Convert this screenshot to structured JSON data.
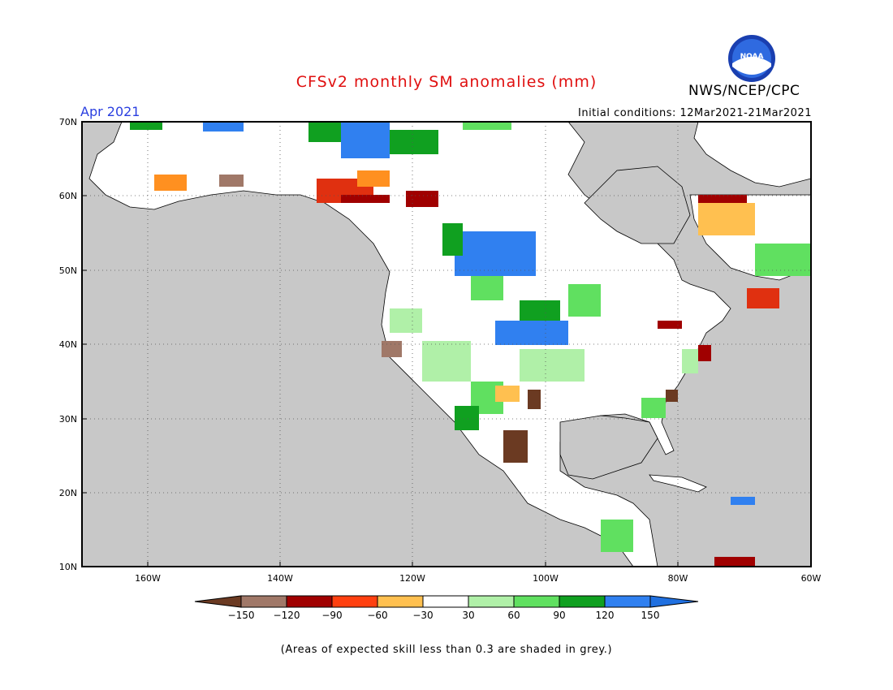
{
  "header": {
    "title": "CFSv2 monthly SM anomalies (mm)",
    "month": "Apr 2021",
    "initial_conditions": "Initial conditions: 12Mar2021-21Mar2021",
    "organization": "NWS/NCEP/CPC",
    "logo_text": "NOAA"
  },
  "map": {
    "lat_labels": [
      "70N",
      "60N",
      "50N",
      "40N",
      "30N",
      "20N",
      "10N"
    ],
    "lon_labels": [
      "160W",
      "140W",
      "120W",
      "100W",
      "80W",
      "60W"
    ],
    "extent": {
      "lon_min": -170,
      "lon_max": -60,
      "lat_min": 10,
      "lat_max": 70
    },
    "colors": {
      "ocean": "#c8c8c8",
      "land": "#ffffff",
      "grid": "#555555"
    }
  },
  "colorbar": {
    "tick_labels": [
      "-150",
      "-120",
      "-90",
      "-60",
      "-30",
      "30",
      "60",
      "90",
      "120",
      "150"
    ],
    "colors": [
      "#6b3a22",
      "#a07868",
      "#a00000",
      "#e03010",
      "#ff9020",
      "#ffc050",
      "#ffffff",
      "#b0f0a8",
      "#60e060",
      "#10a020",
      "#3080f0",
      "#2070e0"
    ]
  },
  "footer": {
    "note": "(Areas of expected skill less than 0.3 are shaded in grey.)"
  }
}
